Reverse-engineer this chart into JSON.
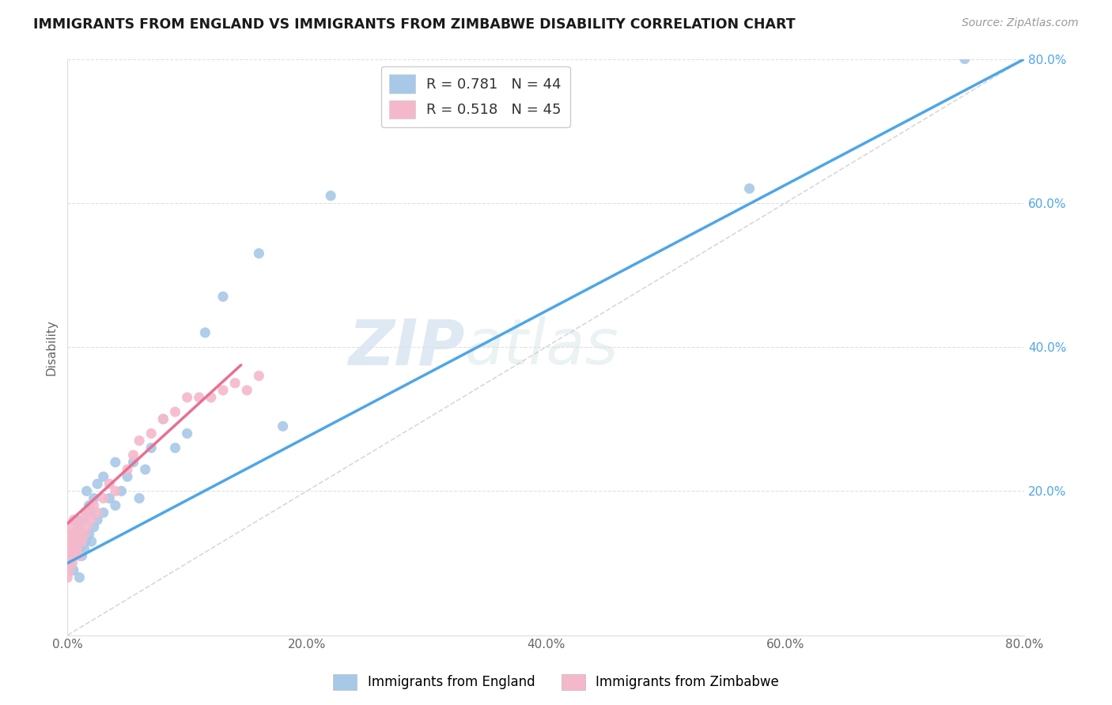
{
  "title": "IMMIGRANTS FROM ENGLAND VS IMMIGRANTS FROM ZIMBABWE DISABILITY CORRELATION CHART",
  "source": "Source: ZipAtlas.com",
  "ylabel": "Disability",
  "xlim": [
    0.0,
    0.8
  ],
  "ylim": [
    0.0,
    0.8
  ],
  "xtick_labels": [
    "0.0%",
    "",
    "20.0%",
    "",
    "40.0%",
    "",
    "60.0%",
    "",
    "80.0%"
  ],
  "xtick_vals": [
    0.0,
    0.1,
    0.2,
    0.3,
    0.4,
    0.5,
    0.6,
    0.7,
    0.8
  ],
  "ytick_labels": [
    "20.0%",
    "40.0%",
    "60.0%",
    "80.0%"
  ],
  "ytick_vals": [
    0.2,
    0.4,
    0.6,
    0.8
  ],
  "england_color": "#a8c8e8",
  "zimbabwe_color": "#f5b8cb",
  "england_line_color": "#4da6e8",
  "zimbabwe_line_color": "#e87090",
  "england_R": 0.781,
  "england_N": 44,
  "zimbabwe_R": 0.518,
  "zimbabwe_N": 45,
  "watermark_zip": "ZIP",
  "watermark_atlas": "atlas",
  "england_line_x": [
    0.0,
    0.8
  ],
  "england_line_y": [
    0.1,
    0.8
  ],
  "zimbabwe_line_x": [
    0.0,
    0.145
  ],
  "zimbabwe_line_y": [
    0.155,
    0.375
  ],
  "england_scatter_x": [
    0.005,
    0.005,
    0.005,
    0.007,
    0.008,
    0.01,
    0.01,
    0.01,
    0.012,
    0.012,
    0.014,
    0.014,
    0.015,
    0.016,
    0.016,
    0.018,
    0.018,
    0.02,
    0.02,
    0.022,
    0.022,
    0.025,
    0.025,
    0.03,
    0.03,
    0.035,
    0.04,
    0.04,
    0.045,
    0.05,
    0.055,
    0.06,
    0.065,
    0.07,
    0.08,
    0.09,
    0.1,
    0.115,
    0.13,
    0.16,
    0.18,
    0.22,
    0.57,
    0.75
  ],
  "england_scatter_y": [
    0.09,
    0.11,
    0.14,
    0.13,
    0.16,
    0.08,
    0.12,
    0.15,
    0.11,
    0.14,
    0.12,
    0.16,
    0.13,
    0.17,
    0.2,
    0.14,
    0.18,
    0.13,
    0.17,
    0.15,
    0.19,
    0.16,
    0.21,
    0.17,
    0.22,
    0.19,
    0.18,
    0.24,
    0.2,
    0.22,
    0.24,
    0.19,
    0.23,
    0.26,
    0.3,
    0.26,
    0.28,
    0.42,
    0.47,
    0.53,
    0.29,
    0.61,
    0.62,
    0.8
  ],
  "zimbabwe_scatter_x": [
    0.0,
    0.0,
    0.0,
    0.001,
    0.001,
    0.002,
    0.002,
    0.003,
    0.003,
    0.004,
    0.004,
    0.005,
    0.005,
    0.006,
    0.006,
    0.007,
    0.008,
    0.009,
    0.01,
    0.01,
    0.012,
    0.012,
    0.014,
    0.015,
    0.016,
    0.018,
    0.02,
    0.022,
    0.025,
    0.03,
    0.035,
    0.04,
    0.05,
    0.055,
    0.06,
    0.07,
    0.08,
    0.09,
    0.1,
    0.11,
    0.12,
    0.13,
    0.14,
    0.15,
    0.16
  ],
  "zimbabwe_scatter_y": [
    0.08,
    0.1,
    0.13,
    0.09,
    0.12,
    0.1,
    0.14,
    0.11,
    0.15,
    0.1,
    0.13,
    0.12,
    0.16,
    0.11,
    0.14,
    0.13,
    0.12,
    0.15,
    0.11,
    0.14,
    0.13,
    0.16,
    0.14,
    0.17,
    0.15,
    0.17,
    0.16,
    0.18,
    0.17,
    0.19,
    0.21,
    0.2,
    0.23,
    0.25,
    0.27,
    0.28,
    0.3,
    0.31,
    0.33,
    0.33,
    0.33,
    0.34,
    0.35,
    0.34,
    0.36
  ]
}
